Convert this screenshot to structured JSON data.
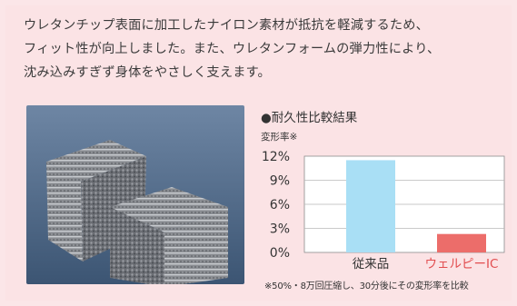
{
  "intro": {
    "line1": "ウレタンチップ表面に加工したナイロン素材が抵抗を軽減するため、",
    "line2": "フィット性が向上しました。また、ウレタンフォームの弾力性により、",
    "line3": "沈み込みすぎず身体をやさしく支えます。"
  },
  "colors": {
    "background": "#fbe3e5",
    "bar_conventional": "#a9dff5",
    "bar_welpy": "#ec6d6a",
    "label_welpy": "#e24d4f"
  },
  "photo": {
    "icon": "foam-sample-photo"
  },
  "chart_data": {
    "type": "bar",
    "title_bullet": "●",
    "title": "耐久性比較結果",
    "ylabel": "変形率※",
    "categories": [
      "従来品",
      "ウェルピーIC"
    ],
    "values": [
      11.5,
      2.3
    ],
    "ylim": [
      0,
      12
    ],
    "yticks": [
      "0%",
      "3%",
      "6%",
      "9%",
      "12%"
    ],
    "grid": true,
    "footnote": "※50%・8万回圧縮し、30分後にその変形率を比較"
  }
}
